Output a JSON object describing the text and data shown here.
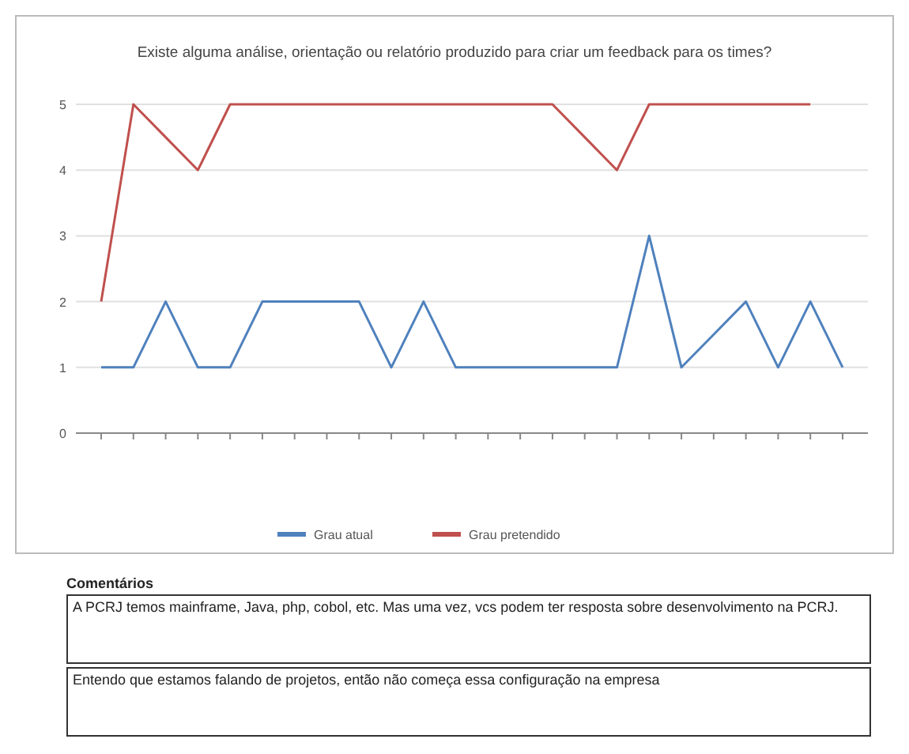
{
  "chart_data": {
    "type": "line",
    "title": "Existe alguma análise, orientação ou relatório produzido para criar um feedback para os times?",
    "categories": [
      null,
      null,
      null,
      null,
      null,
      null,
      null,
      null,
      null,
      null,
      null,
      null,
      null,
      null,
      null,
      null,
      null,
      null,
      null,
      null,
      null,
      null,
      null,
      null
    ],
    "series": [
      {
        "name": "Grau atual",
        "color": "#4f81bd",
        "values": [
          1,
          1,
          2,
          1,
          1,
          2,
          2,
          2,
          2,
          1,
          2,
          1,
          1,
          1,
          1,
          1,
          1,
          3,
          1,
          1.5,
          2,
          1,
          2,
          1
        ]
      },
      {
        "name": "Grau pretendido",
        "color": "#c0504d",
        "values": [
          2,
          5,
          4.5,
          4,
          5,
          5,
          5,
          5,
          5,
          5,
          5,
          5,
          5,
          5,
          5,
          4.5,
          4,
          5,
          5,
          5,
          5,
          5,
          5,
          null
        ]
      }
    ],
    "ylim": [
      0,
      5
    ],
    "yticks": [
      0,
      1,
      2,
      3,
      4,
      5
    ],
    "grid": "y",
    "legend": "bottom",
    "marker": "none",
    "line_style": "solid",
    "annotations": [
      "Comentários",
      "A PCRJ temos mainframe, Java, php, cobol, etc. Mas uma vez, vcs podem ter resposta sobre desenvolvimento na PCRJ.",
      "Entendo que estamos falando de projetos, então não começa essa configuração na empresa"
    ]
  }
}
